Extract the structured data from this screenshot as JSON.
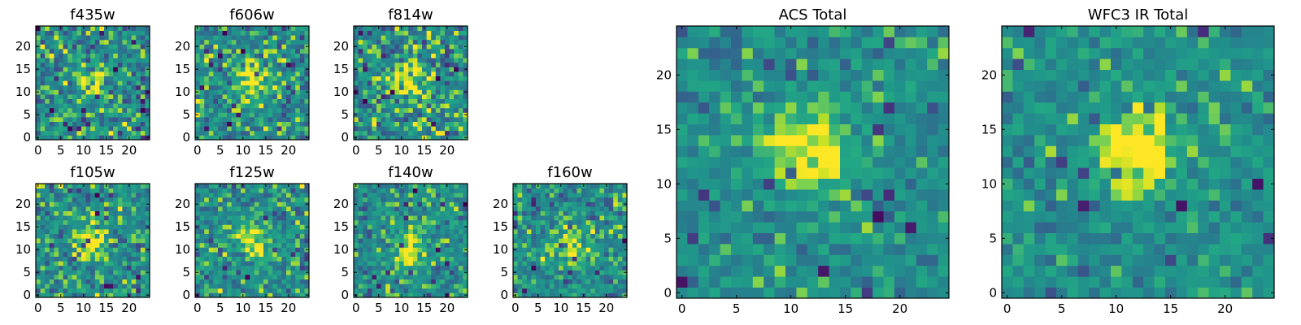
{
  "chart_data": [
    {
      "type": "heatmap",
      "title": "f435w",
      "grid_size": 25,
      "xlim": [
        0,
        24
      ],
      "ylim": [
        0,
        24
      ],
      "x_ticks": [
        0,
        5,
        10,
        15,
        20
      ],
      "y_ticks": [
        0,
        5,
        10,
        15,
        20
      ],
      "source_center": [
        12,
        12
      ],
      "peak_level": 0.55,
      "noise_level": 0.75,
      "colormap": "viridis"
    },
    {
      "type": "heatmap",
      "title": "f606w",
      "grid_size": 25,
      "xlim": [
        0,
        24
      ],
      "ylim": [
        0,
        24
      ],
      "x_ticks": [
        0,
        5,
        10,
        15,
        20
      ],
      "y_ticks": [
        0,
        5,
        10,
        15,
        20
      ],
      "source_center": [
        12,
        12
      ],
      "peak_level": 0.7,
      "noise_level": 0.7,
      "colormap": "viridis"
    },
    {
      "type": "heatmap",
      "title": "f814w",
      "grid_size": 25,
      "xlim": [
        0,
        24
      ],
      "ylim": [
        0,
        24
      ],
      "x_ticks": [
        0,
        5,
        10,
        15,
        20
      ],
      "y_ticks": [
        0,
        5,
        10,
        15,
        20
      ],
      "source_center": [
        12,
        12
      ],
      "peak_level": 0.75,
      "noise_level": 0.75,
      "colormap": "viridis"
    },
    {
      "type": "heatmap",
      "title": "f105w",
      "grid_size": 25,
      "xlim": [
        0,
        24
      ],
      "ylim": [
        0,
        24
      ],
      "x_ticks": [
        0,
        5,
        10,
        15,
        20
      ],
      "y_ticks": [
        0,
        5,
        10,
        15,
        20
      ],
      "source_center": [
        12,
        12
      ],
      "peak_level": 0.7,
      "noise_level": 0.65,
      "colormap": "viridis"
    },
    {
      "type": "heatmap",
      "title": "f125w",
      "grid_size": 25,
      "xlim": [
        0,
        24
      ],
      "ylim": [
        0,
        24
      ],
      "x_ticks": [
        0,
        5,
        10,
        15,
        20
      ],
      "y_ticks": [
        0,
        5,
        10,
        15,
        20
      ],
      "source_center": [
        12,
        12
      ],
      "peak_level": 0.6,
      "noise_level": 0.65,
      "colormap": "viridis"
    },
    {
      "type": "heatmap",
      "title": "f140w",
      "grid_size": 25,
      "xlim": [
        0,
        24
      ],
      "ylim": [
        0,
        24
      ],
      "x_ticks": [
        0,
        5,
        10,
        15,
        20
      ],
      "y_ticks": [
        0,
        5,
        10,
        15,
        20
      ],
      "source_center": [
        12,
        10
      ],
      "peak_level": 0.7,
      "noise_level": 0.55,
      "colormap": "viridis"
    },
    {
      "type": "heatmap",
      "title": "f160w",
      "grid_size": 25,
      "xlim": [
        0,
        24
      ],
      "ylim": [
        0,
        24
      ],
      "x_ticks": [
        0,
        5,
        10,
        15,
        20
      ],
      "y_ticks": [
        0,
        5,
        10,
        15,
        20
      ],
      "source_center": [
        12,
        11
      ],
      "peak_level": 0.65,
      "noise_level": 0.6,
      "colormap": "viridis"
    },
    {
      "type": "heatmap",
      "title": "ACS Total",
      "grid_size": 25,
      "xlim": [
        0,
        24
      ],
      "ylim": [
        0,
        24
      ],
      "x_ticks": [
        0,
        5,
        10,
        15,
        20
      ],
      "y_ticks": [
        0,
        5,
        10,
        15,
        20
      ],
      "source_center": [
        12,
        13
      ],
      "peak_level": 0.8,
      "noise_level": 0.45,
      "colormap": "viridis"
    },
    {
      "type": "heatmap",
      "title": "WFC3 IR Total",
      "grid_size": 25,
      "xlim": [
        0,
        24
      ],
      "ylim": [
        0,
        24
      ],
      "x_ticks": [
        0,
        5,
        10,
        15,
        20
      ],
      "y_ticks": [
        0,
        5,
        10,
        15,
        20
      ],
      "source_center": [
        12,
        13
      ],
      "peak_level": 0.85,
      "noise_level": 0.45,
      "colormap": "viridis"
    }
  ]
}
